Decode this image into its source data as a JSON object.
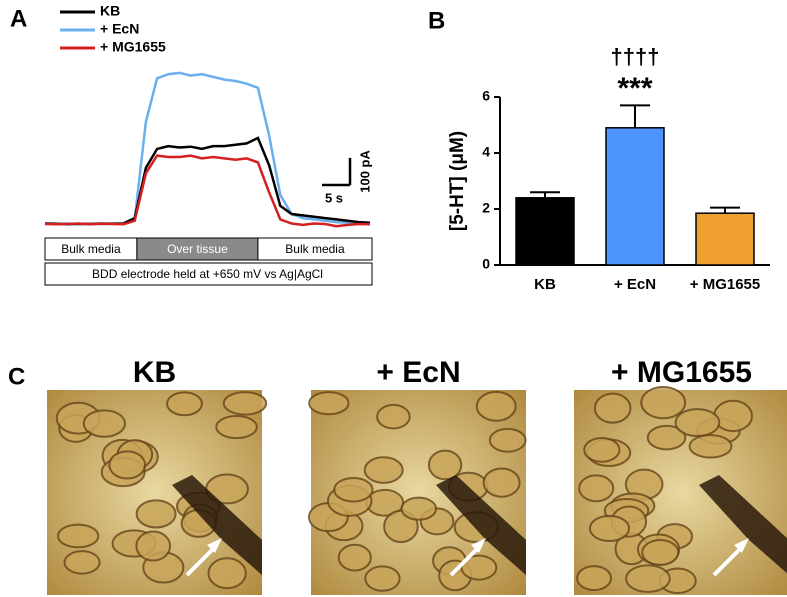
{
  "chart_data": [
    {
      "type": "line",
      "panel": "A",
      "x": [
        0,
        2,
        4,
        6,
        8,
        10,
        12,
        14,
        16,
        18,
        20,
        22,
        24,
        26,
        28,
        30,
        32,
        34,
        36,
        38,
        40,
        42,
        44,
        46,
        48,
        50,
        52,
        54,
        56,
        58
      ],
      "xlim": [
        0,
        58
      ],
      "ylim": [
        -30,
        600
      ],
      "series": [
        {
          "name": "KB",
          "color": "#000000",
          "values": [
            5,
            4,
            2,
            4,
            3,
            5,
            4,
            5,
            25,
            210,
            280,
            290,
            285,
            288,
            280,
            290,
            290,
            295,
            300,
            320,
            220,
            70,
            40,
            35,
            30,
            25,
            20,
            15,
            10,
            8
          ]
        },
        {
          "name": "+ EcN",
          "color": "#6ab0ee",
          "values": [
            5,
            3,
            5,
            2,
            4,
            3,
            5,
            4,
            20,
            380,
            540,
            555,
            560,
            550,
            555,
            545,
            535,
            530,
            520,
            505,
            330,
            110,
            40,
            25,
            20,
            15,
            10,
            8,
            5,
            5
          ]
        },
        {
          "name": "+ MG1655",
          "color": "#d42020",
          "values": [
            3,
            2,
            3,
            5,
            2,
            4,
            3,
            2,
            15,
            190,
            255,
            250,
            250,
            255,
            245,
            250,
            245,
            240,
            245,
            230,
            120,
            20,
            5,
            0,
            5,
            3,
            -5,
            0,
            3,
            2
          ]
        }
      ],
      "scale_x": {
        "value": 5,
        "label": "5 s"
      },
      "scale_y": {
        "value": 100,
        "label": "100 pA"
      },
      "segments": [
        {
          "label": "Bulk media",
          "start": 0,
          "end": 16.4
        },
        {
          "label": "Over tissue",
          "start": 16.4,
          "end": 38
        },
        {
          "label": "Bulk media",
          "start": 38,
          "end": 58
        }
      ],
      "note": "BDD electrode held at +650 mV vs Ag|AgCl"
    },
    {
      "type": "bar",
      "panel": "B",
      "categories": [
        "KB",
        "+ EcN",
        "+ MG1655"
      ],
      "values": [
        2.4,
        4.9,
        1.85
      ],
      "errors": [
        0.2,
        0.8,
        0.2
      ],
      "colors": [
        "#000000",
        "#4d94ff",
        "#f0a030"
      ],
      "ylabel": "[5-HT] (μM)",
      "ylim": [
        0,
        6
      ],
      "yticks": [
        0,
        2,
        4,
        6
      ],
      "annotations": [
        "††††",
        "***"
      ]
    }
  ],
  "image_panel": {
    "panel": "C",
    "titles": [
      "KB",
      "+ EcN",
      "+ MG1655"
    ]
  }
}
